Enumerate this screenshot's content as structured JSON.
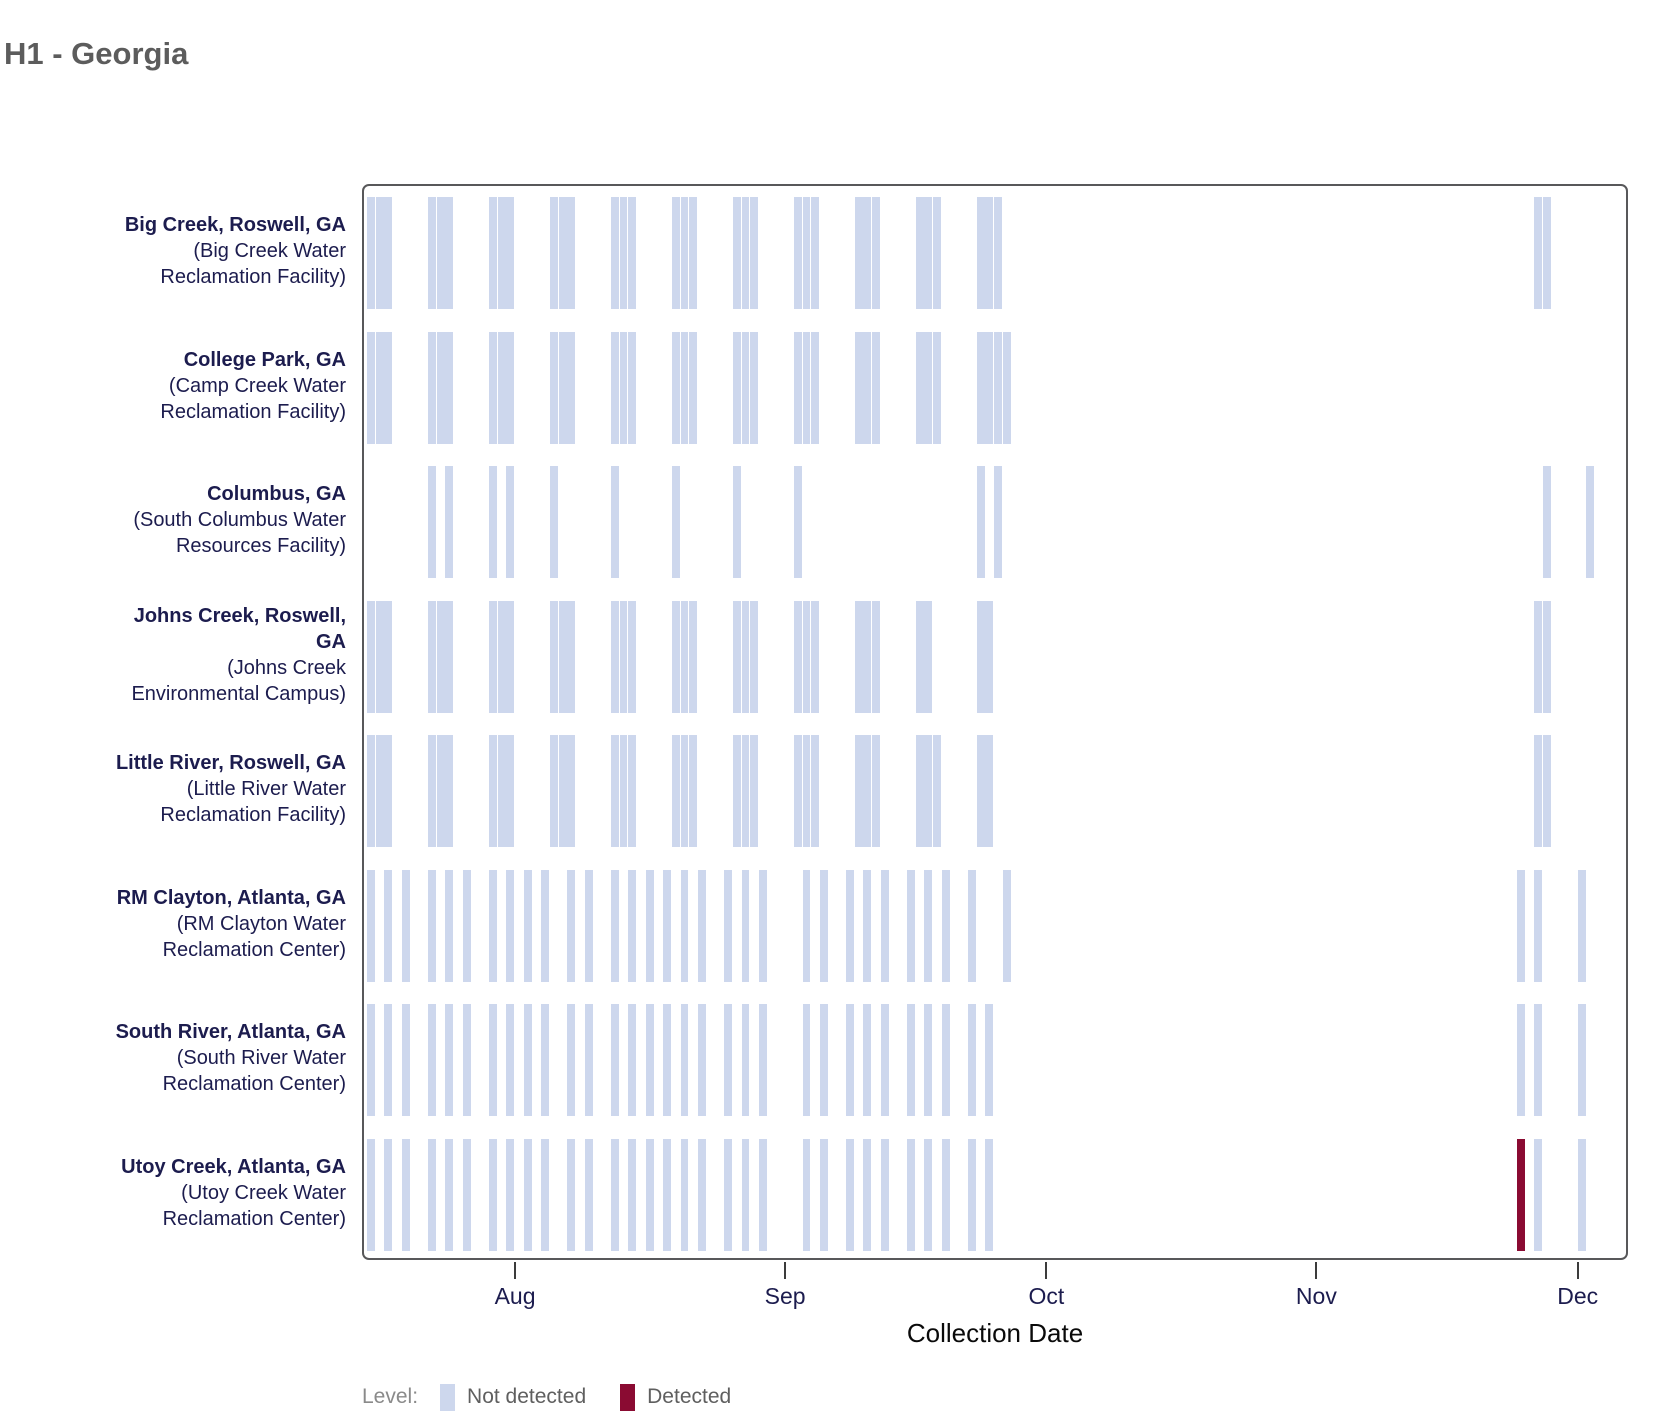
{
  "title": "H1 - Georgia",
  "x_axis": {
    "label": "Collection Date",
    "months": [
      "Aug",
      "Sep",
      "Oct",
      "Nov",
      "Dec"
    ],
    "month_day_offsets": [
      17,
      48,
      78,
      109,
      139
    ]
  },
  "legend": {
    "label": "Level:",
    "items": [
      {
        "label": "Not detected",
        "color": "#cdd7ed"
      },
      {
        "label": "Detected",
        "color": "#8a0b32"
      }
    ]
  },
  "chart_data": {
    "type": "heatmap",
    "title": "H1 - Georgia",
    "xlabel": "Collection Date",
    "x_domain_note": "timeline runs ~Jul 15 to ~Dec 6; runs are [day_offset_from_Jul_15, consecutive_days, level] with level nd=Not detected, d=Detected",
    "x_tick_months": [
      "Aug",
      "Sep",
      "Oct",
      "Nov",
      "Dec"
    ],
    "rows": [
      {
        "location_lines": [
          "Big Creek, Roswell, GA"
        ],
        "facility_lines": [
          "(Big Creek Water",
          "Reclamation Facility)"
        ],
        "runs": [
          [
            0,
            3,
            "nd"
          ],
          [
            7,
            3,
            "nd"
          ],
          [
            14,
            3,
            "nd"
          ],
          [
            21,
            3,
            "nd"
          ],
          [
            28,
            3,
            "nd"
          ],
          [
            35,
            3,
            "nd"
          ],
          [
            42,
            3,
            "nd"
          ],
          [
            49,
            3,
            "nd"
          ],
          [
            56,
            3,
            "nd"
          ],
          [
            63,
            3,
            "nd"
          ],
          [
            70,
            3,
            "nd"
          ],
          [
            134,
            2,
            "nd"
          ]
        ]
      },
      {
        "location_lines": [
          "College Park, GA"
        ],
        "facility_lines": [
          "(Camp Creek Water",
          "Reclamation Facility)"
        ],
        "runs": [
          [
            0,
            3,
            "nd"
          ],
          [
            7,
            3,
            "nd"
          ],
          [
            14,
            3,
            "nd"
          ],
          [
            21,
            3,
            "nd"
          ],
          [
            28,
            3,
            "nd"
          ],
          [
            35,
            3,
            "nd"
          ],
          [
            42,
            3,
            "nd"
          ],
          [
            49,
            3,
            "nd"
          ],
          [
            56,
            3,
            "nd"
          ],
          [
            63,
            3,
            "nd"
          ],
          [
            70,
            4,
            "nd"
          ]
        ]
      },
      {
        "location_lines": [
          "Columbus, GA"
        ],
        "facility_lines": [
          "(South Columbus Water",
          "Resources Facility)"
        ],
        "runs": [
          [
            7,
            1,
            "nd"
          ],
          [
            9,
            1,
            "nd"
          ],
          [
            14,
            1,
            "nd"
          ],
          [
            16,
            1,
            "nd"
          ],
          [
            21,
            1,
            "nd"
          ],
          [
            28,
            1,
            "nd"
          ],
          [
            35,
            1,
            "nd"
          ],
          [
            42,
            1,
            "nd"
          ],
          [
            49,
            1,
            "nd"
          ],
          [
            70,
            1,
            "nd"
          ],
          [
            72,
            1,
            "nd"
          ],
          [
            135,
            1,
            "nd"
          ],
          [
            140,
            1,
            "nd"
          ]
        ]
      },
      {
        "location_lines": [
          "Johns Creek, Roswell,",
          "GA"
        ],
        "facility_lines": [
          "(Johns Creek",
          "Environmental Campus)"
        ],
        "runs": [
          [
            0,
            3,
            "nd"
          ],
          [
            7,
            3,
            "nd"
          ],
          [
            14,
            3,
            "nd"
          ],
          [
            21,
            3,
            "nd"
          ],
          [
            28,
            3,
            "nd"
          ],
          [
            35,
            3,
            "nd"
          ],
          [
            42,
            3,
            "nd"
          ],
          [
            49,
            3,
            "nd"
          ],
          [
            56,
            3,
            "nd"
          ],
          [
            63,
            2,
            "nd"
          ],
          [
            70,
            2,
            "nd"
          ],
          [
            134,
            2,
            "nd"
          ]
        ]
      },
      {
        "location_lines": [
          "Little River, Roswell, GA"
        ],
        "facility_lines": [
          "(Little River Water",
          "Reclamation Facility)"
        ],
        "runs": [
          [
            0,
            3,
            "nd"
          ],
          [
            7,
            3,
            "nd"
          ],
          [
            14,
            3,
            "nd"
          ],
          [
            21,
            3,
            "nd"
          ],
          [
            28,
            3,
            "nd"
          ],
          [
            35,
            3,
            "nd"
          ],
          [
            42,
            3,
            "nd"
          ],
          [
            49,
            3,
            "nd"
          ],
          [
            56,
            3,
            "nd"
          ],
          [
            63,
            3,
            "nd"
          ],
          [
            70,
            2,
            "nd"
          ],
          [
            134,
            2,
            "nd"
          ]
        ]
      },
      {
        "location_lines": [
          "RM Clayton, Atlanta, GA"
        ],
        "facility_lines": [
          "(RM Clayton Water",
          "Reclamation Center)"
        ],
        "runs": [
          [
            0,
            1,
            "nd"
          ],
          [
            2,
            1,
            "nd"
          ],
          [
            4,
            1,
            "nd"
          ],
          [
            7,
            1,
            "nd"
          ],
          [
            9,
            1,
            "nd"
          ],
          [
            11,
            1,
            "nd"
          ],
          [
            14,
            1,
            "nd"
          ],
          [
            16,
            1,
            "nd"
          ],
          [
            18,
            1,
            "nd"
          ],
          [
            20,
            1,
            "nd"
          ],
          [
            23,
            1,
            "nd"
          ],
          [
            25,
            1,
            "nd"
          ],
          [
            28,
            1,
            "nd"
          ],
          [
            30,
            1,
            "nd"
          ],
          [
            32,
            1,
            "nd"
          ],
          [
            34,
            1,
            "nd"
          ],
          [
            36,
            1,
            "nd"
          ],
          [
            38,
            1,
            "nd"
          ],
          [
            41,
            1,
            "nd"
          ],
          [
            43,
            1,
            "nd"
          ],
          [
            45,
            1,
            "nd"
          ],
          [
            50,
            1,
            "nd"
          ],
          [
            52,
            1,
            "nd"
          ],
          [
            55,
            1,
            "nd"
          ],
          [
            57,
            1,
            "nd"
          ],
          [
            59,
            1,
            "nd"
          ],
          [
            62,
            1,
            "nd"
          ],
          [
            64,
            1,
            "nd"
          ],
          [
            66,
            1,
            "nd"
          ],
          [
            69,
            1,
            "nd"
          ],
          [
            73,
            1,
            "nd"
          ],
          [
            132,
            1,
            "nd"
          ],
          [
            134,
            1,
            "nd"
          ],
          [
            139,
            1,
            "nd"
          ]
        ]
      },
      {
        "location_lines": [
          "South River, Atlanta, GA"
        ],
        "facility_lines": [
          "(South River Water",
          "Reclamation Center)"
        ],
        "runs": [
          [
            0,
            1,
            "nd"
          ],
          [
            2,
            1,
            "nd"
          ],
          [
            4,
            1,
            "nd"
          ],
          [
            7,
            1,
            "nd"
          ],
          [
            9,
            1,
            "nd"
          ],
          [
            11,
            1,
            "nd"
          ],
          [
            14,
            1,
            "nd"
          ],
          [
            16,
            1,
            "nd"
          ],
          [
            18,
            1,
            "nd"
          ],
          [
            20,
            1,
            "nd"
          ],
          [
            23,
            1,
            "nd"
          ],
          [
            25,
            1,
            "nd"
          ],
          [
            28,
            1,
            "nd"
          ],
          [
            30,
            1,
            "nd"
          ],
          [
            32,
            1,
            "nd"
          ],
          [
            34,
            1,
            "nd"
          ],
          [
            36,
            1,
            "nd"
          ],
          [
            38,
            1,
            "nd"
          ],
          [
            41,
            1,
            "nd"
          ],
          [
            43,
            1,
            "nd"
          ],
          [
            45,
            1,
            "nd"
          ],
          [
            50,
            1,
            "nd"
          ],
          [
            52,
            1,
            "nd"
          ],
          [
            55,
            1,
            "nd"
          ],
          [
            57,
            1,
            "nd"
          ],
          [
            59,
            1,
            "nd"
          ],
          [
            62,
            1,
            "nd"
          ],
          [
            64,
            1,
            "nd"
          ],
          [
            66,
            1,
            "nd"
          ],
          [
            69,
            1,
            "nd"
          ],
          [
            71,
            1,
            "nd"
          ],
          [
            132,
            1,
            "nd"
          ],
          [
            134,
            1,
            "nd"
          ],
          [
            139,
            1,
            "nd"
          ]
        ]
      },
      {
        "location_lines": [
          "Utoy Creek, Atlanta, GA"
        ],
        "facility_lines": [
          "(Utoy Creek Water",
          "Reclamation Center)"
        ],
        "runs": [
          [
            0,
            1,
            "nd"
          ],
          [
            2,
            1,
            "nd"
          ],
          [
            4,
            1,
            "nd"
          ],
          [
            7,
            1,
            "nd"
          ],
          [
            9,
            1,
            "nd"
          ],
          [
            11,
            1,
            "nd"
          ],
          [
            14,
            1,
            "nd"
          ],
          [
            16,
            1,
            "nd"
          ],
          [
            18,
            1,
            "nd"
          ],
          [
            20,
            1,
            "nd"
          ],
          [
            23,
            1,
            "nd"
          ],
          [
            25,
            1,
            "nd"
          ],
          [
            28,
            1,
            "nd"
          ],
          [
            30,
            1,
            "nd"
          ],
          [
            32,
            1,
            "nd"
          ],
          [
            34,
            1,
            "nd"
          ],
          [
            36,
            1,
            "nd"
          ],
          [
            38,
            1,
            "nd"
          ],
          [
            41,
            1,
            "nd"
          ],
          [
            43,
            1,
            "nd"
          ],
          [
            45,
            1,
            "nd"
          ],
          [
            50,
            1,
            "nd"
          ],
          [
            52,
            1,
            "nd"
          ],
          [
            55,
            1,
            "nd"
          ],
          [
            57,
            1,
            "nd"
          ],
          [
            59,
            1,
            "nd"
          ],
          [
            62,
            1,
            "nd"
          ],
          [
            64,
            1,
            "nd"
          ],
          [
            66,
            1,
            "nd"
          ],
          [
            69,
            1,
            "nd"
          ],
          [
            71,
            1,
            "nd"
          ],
          [
            132,
            1,
            "d"
          ],
          [
            134,
            1,
            "nd"
          ],
          [
            139,
            1,
            "nd"
          ]
        ]
      }
    ]
  }
}
